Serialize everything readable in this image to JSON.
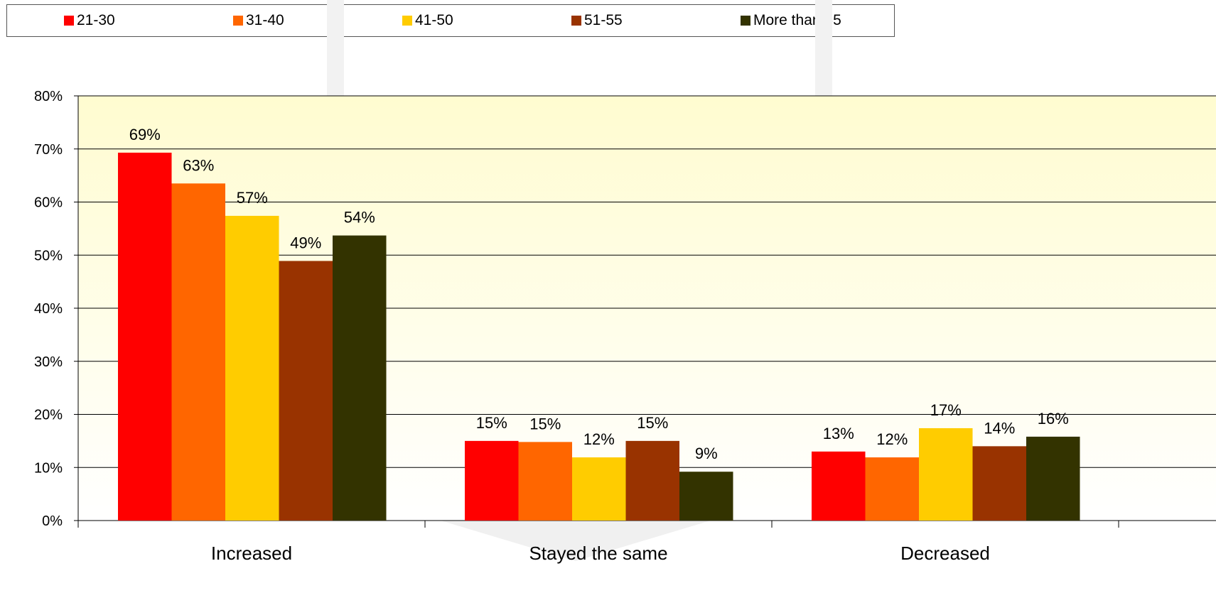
{
  "chart_data": {
    "type": "bar",
    "categories": [
      "Increased",
      "Stayed the same",
      "Decreased"
    ],
    "series": [
      {
        "name": "21-30",
        "color": "#ff0000",
        "values": [
          69,
          15,
          13
        ]
      },
      {
        "name": "31-40",
        "color": "#ff6600",
        "values": [
          63,
          15,
          12
        ]
      },
      {
        "name": "41-50",
        "color": "#ffcc00",
        "values": [
          57,
          12,
          17
        ]
      },
      {
        "name": "51-55",
        "color": "#993300",
        "values": [
          49,
          15,
          14
        ]
      },
      {
        "name": "More than 55",
        "color": "#333300",
        "values": [
          54,
          9,
          16
        ]
      }
    ],
    "bar_values": [
      [
        69.3,
        15,
        13
      ],
      [
        63.5,
        14.8,
        11.9
      ],
      [
        57.4,
        11.9,
        17.4
      ],
      [
        48.9,
        15,
        14
      ],
      [
        53.7,
        9.2,
        15.8
      ]
    ],
    "ylim": [
      0,
      80
    ],
    "yticks": [
      "0%",
      "10%",
      "20%",
      "30%",
      "40%",
      "50%",
      "60%",
      "70%",
      "80%"
    ],
    "grid": true,
    "legend_position": "top",
    "plot_background": "#fffff0"
  }
}
